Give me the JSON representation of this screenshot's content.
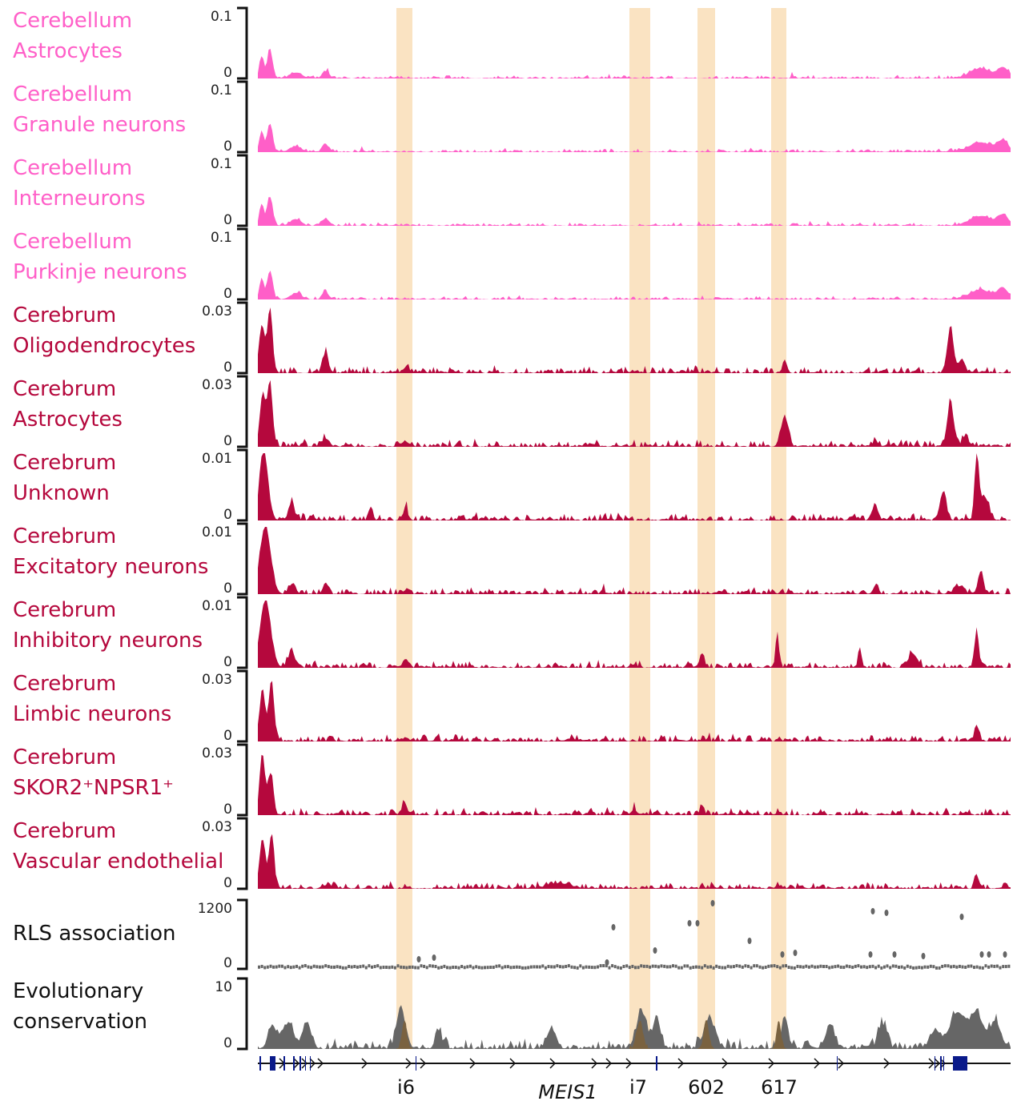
{
  "chart_data": {
    "type": "area",
    "title": "",
    "x_axis": "genomic position (MEIS1 locus)",
    "highlights": [
      "i6",
      "i7",
      "602",
      "617"
    ],
    "highlight_color": "#fae3c2",
    "gene": {
      "name": "MEIS1",
      "color": "#0a1a8a"
    },
    "colors": {
      "cerebellum": "#ff5fc8",
      "cerebrum": "#b5083d",
      "gray": "#666666"
    },
    "tracks": [
      {
        "label": [
          "Cerebellum",
          "Astrocytes"
        ],
        "group": "cerebellum",
        "ymax_label": "0.1",
        "ymin_label": "0"
      },
      {
        "label": [
          "Cerebellum",
          "Granule neurons"
        ],
        "group": "cerebellum",
        "ymax_label": "0.1",
        "ymin_label": "0"
      },
      {
        "label": [
          "Cerebellum",
          "Interneurons"
        ],
        "group": "cerebellum",
        "ymax_label": "0.1",
        "ymin_label": "0"
      },
      {
        "label": [
          "Cerebellum",
          "Purkinje neurons"
        ],
        "group": "cerebellum",
        "ymax_label": "0.1",
        "ymin_label": "0"
      },
      {
        "label": [
          "Cerebrum",
          "Oligodendrocytes"
        ],
        "group": "cerebrum",
        "ymax_label": "0.03",
        "ymin_label": "0"
      },
      {
        "label": [
          "Cerebrum",
          "Astrocytes"
        ],
        "group": "cerebrum",
        "ymax_label": "0.03",
        "ymin_label": "0"
      },
      {
        "label": [
          "Cerebrum",
          "Unknown"
        ],
        "group": "cerebrum",
        "ymax_label": "0.01",
        "ymin_label": "0"
      },
      {
        "label": [
          "Cerebrum",
          "Excitatory neurons"
        ],
        "group": "cerebrum",
        "ymax_label": "0.01",
        "ymin_label": "0"
      },
      {
        "label": [
          "Cerebrum",
          "Inhibitory neurons"
        ],
        "group": "cerebrum",
        "ymax_label": "0.01",
        "ymin_label": "0"
      },
      {
        "label": [
          "Cerebrum",
          "Limbic neurons"
        ],
        "group": "cerebrum",
        "ymax_label": "0.03",
        "ymin_label": "0"
      },
      {
        "label": [
          "Cerebrum",
          "SKOR2⁺NPSR1⁺"
        ],
        "group": "cerebrum",
        "ymax_label": "0.03",
        "ymin_label": "0"
      },
      {
        "label": [
          "Cerebrum",
          "Vascular endothelial"
        ],
        "group": "cerebrum",
        "ymax_label": "0.03",
        "ymin_label": "0"
      },
      {
        "label": [
          "RLS association"
        ],
        "group": "gray",
        "ymax_label": "1200",
        "ymin_label": "0"
      },
      {
        "label": [
          "Evolutionary",
          "conservation"
        ],
        "group": "gray",
        "ymax_label": "10",
        "ymin_label": "0"
      }
    ]
  }
}
